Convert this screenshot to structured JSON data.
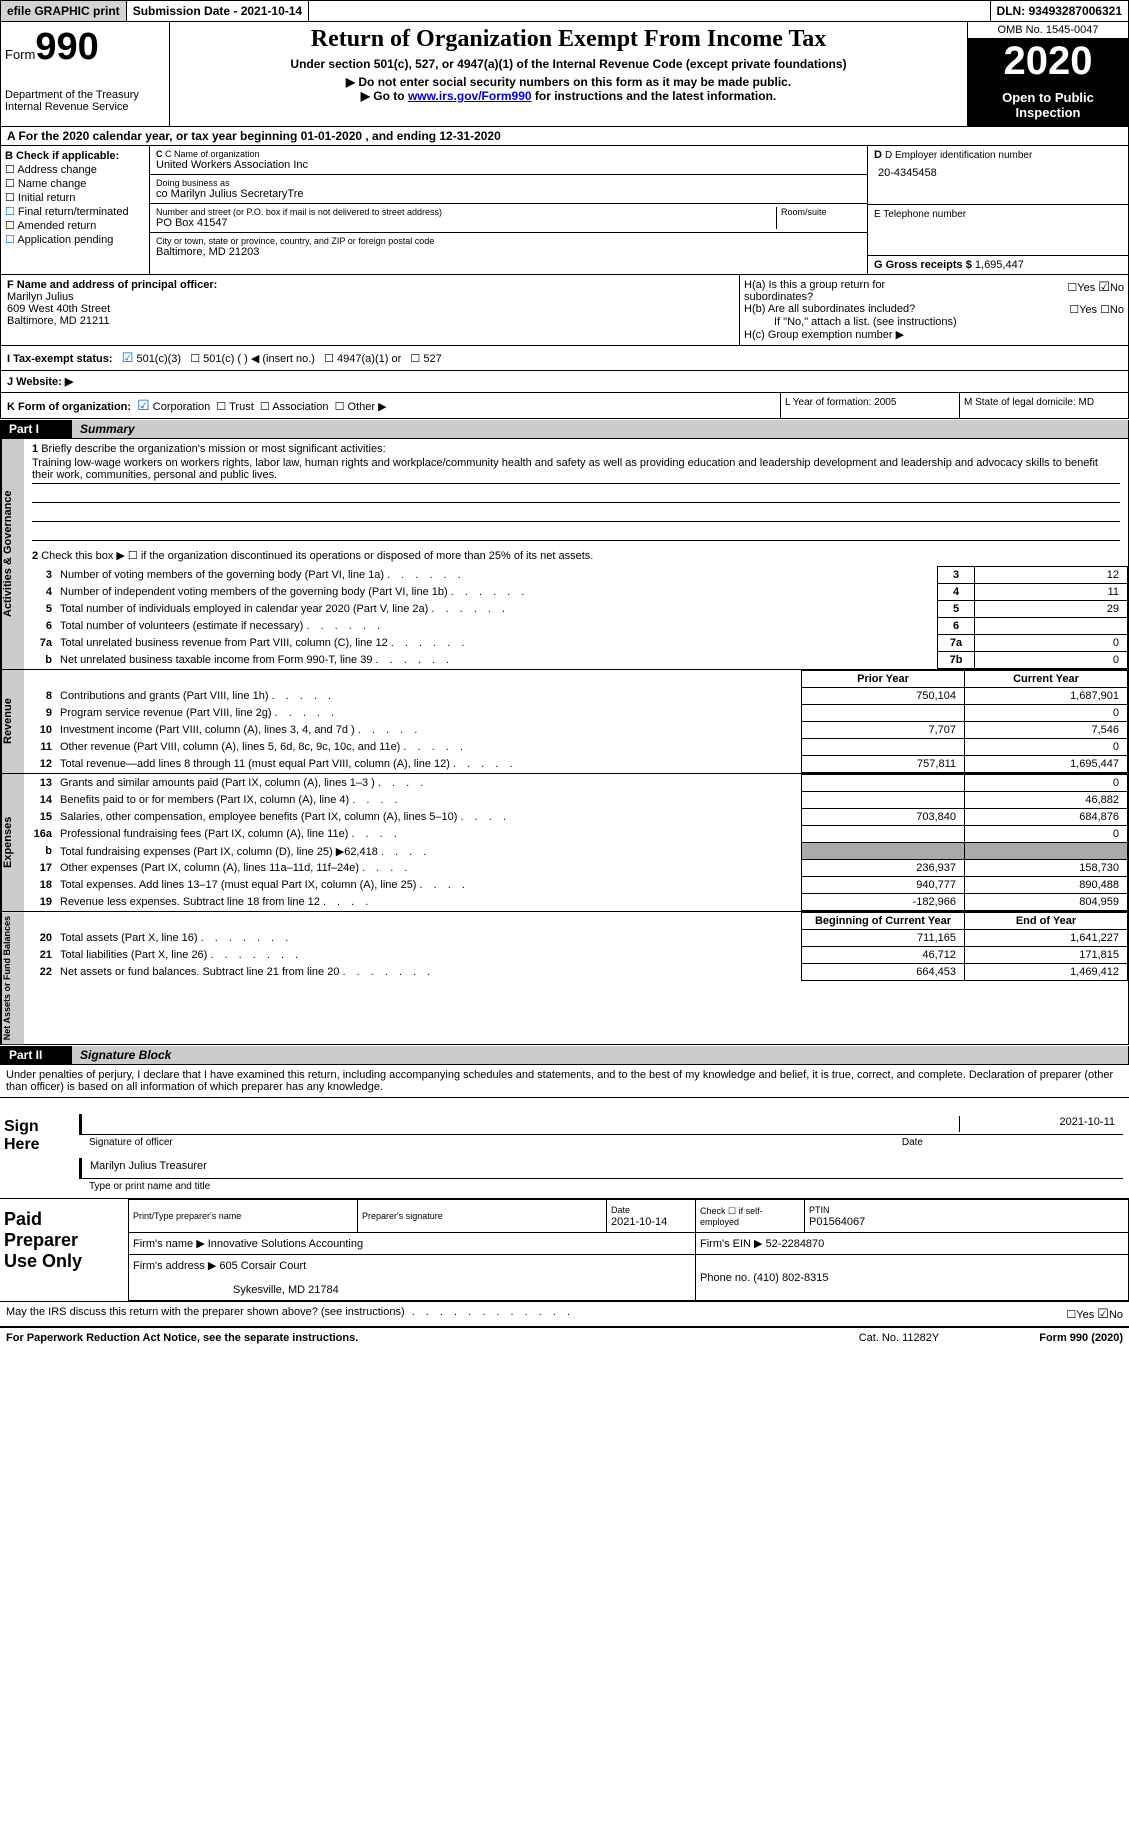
{
  "topbar": {
    "efile": "efile GRAPHIC print",
    "submission": "Submission Date - 2021-10-14",
    "dln_label": "DLN:",
    "dln": "93493287006321"
  },
  "header": {
    "form_prefix": "Form",
    "form_number": "990",
    "dept": "Department of the Treasury\nInternal Revenue Service",
    "title": "Return of Organization Exempt From Income Tax",
    "subtitle": "Under section 501(c), 527, or 4947(a)(1) of the Internal Revenue Code (except private foundations)",
    "note1": "▶ Do not enter social security numbers on this form as it may be made public.",
    "note2_pre": "▶ Go to ",
    "note2_link": "www.irs.gov/Form990",
    "note2_post": " for instructions and the latest information.",
    "omb": "OMB No. 1545-0047",
    "tax_year": "2020",
    "open_public": "Open to Public Inspection"
  },
  "row_a": "A For the 2020 calendar year, or tax year beginning 01-01-2020   , and ending 12-31-2020",
  "col_b": {
    "header": "B Check if applicable:",
    "items": [
      "Address change",
      "Name change",
      "Initial return",
      "Final return/terminated",
      "Amended return",
      "Application pending"
    ]
  },
  "col_c": {
    "name_label": "C Name of organization",
    "name": "United Workers Association Inc",
    "dba_label": "Doing business as",
    "dba": "co Marilyn Julius SecretaryTre",
    "street_label": "Number and street (or P.O. box if mail is not delivered to street address)",
    "room_label": "Room/suite",
    "street": "PO Box 41547",
    "city_label": "City or town, state or province, country, and ZIP or foreign postal code",
    "city": "Baltimore, MD  21203"
  },
  "col_d": {
    "ein_label": "D Employer identification number",
    "ein": "20-4345458",
    "phone_label": "E Telephone number",
    "gross_label": "G Gross receipts $",
    "gross": "1,695,447"
  },
  "officer": {
    "label": "F Name and address of principal officer:",
    "name": "Marilyn Julius",
    "street": "609 West 40th Street",
    "city": "Baltimore, MD  21211"
  },
  "h_section": {
    "ha": "H(a)  Is this a group return for subordinates?",
    "ha_no": "No",
    "hb": "H(b)  Are all subordinates included?",
    "hb_note": "If \"No,\" attach a list. (see instructions)",
    "hc": "H(c)  Group exemption number ▶"
  },
  "row_i": "I  Tax-exempt status:",
  "row_i_opts": [
    "501(c)(3)",
    "501(c) (  ) ◀ (insert no.)",
    "4947(a)(1) or",
    "527"
  ],
  "row_j": "J  Website: ▶",
  "row_k": {
    "label": "K Form of organization:",
    "opts": [
      "Corporation",
      "Trust",
      "Association",
      "Other ▶"
    ]
  },
  "row_lm": {
    "l": "L Year of formation: 2005",
    "m": "M State of legal domicile: MD"
  },
  "part1": {
    "label": "Part I",
    "title": "Summary"
  },
  "mission": {
    "q1": "Briefly describe the organization's mission or most significant activities:",
    "text": "Training low-wage workers on workers rights, labor law, human rights and workplace/community health and safety as well as providing education and leadership development and leadership and advocacy skills to benefit their work, communities, personal and public lives."
  },
  "governance": {
    "q2": "Check this box ▶ ☐ if the organization discontinued its operations or disposed of more than 25% of its net assets.",
    "rows": [
      {
        "n": "3",
        "label": "Number of voting members of the governing body (Part VI, line 1a)",
        "box": "3",
        "val": "12"
      },
      {
        "n": "4",
        "label": "Number of independent voting members of the governing body (Part VI, line 1b)",
        "box": "4",
        "val": "11"
      },
      {
        "n": "5",
        "label": "Total number of individuals employed in calendar year 2020 (Part V, line 2a)",
        "box": "5",
        "val": "29"
      },
      {
        "n": "6",
        "label": "Total number of volunteers (estimate if necessary)",
        "box": "6",
        "val": ""
      },
      {
        "n": "7a",
        "label": "Total unrelated business revenue from Part VIII, column (C), line 12",
        "box": "7a",
        "val": "0"
      },
      {
        "n": "b",
        "label": "Net unrelated business taxable income from Form 990-T, line 39",
        "box": "7b",
        "val": "0"
      }
    ]
  },
  "fin_headers": {
    "prior": "Prior Year",
    "current": "Current Year",
    "boy": "Beginning of Current Year",
    "eoy": "End of Year"
  },
  "revenue": [
    {
      "n": "8",
      "label": "Contributions and grants (Part VIII, line 1h)",
      "prior": "750,104",
      "curr": "1,687,901"
    },
    {
      "n": "9",
      "label": "Program service revenue (Part VIII, line 2g)",
      "prior": "",
      "curr": "0"
    },
    {
      "n": "10",
      "label": "Investment income (Part VIII, column (A), lines 3, 4, and 7d )",
      "prior": "7,707",
      "curr": "7,546"
    },
    {
      "n": "11",
      "label": "Other revenue (Part VIII, column (A), lines 5, 6d, 8c, 9c, 10c, and 11e)",
      "prior": "",
      "curr": "0"
    },
    {
      "n": "12",
      "label": "Total revenue—add lines 8 through 11 (must equal Part VIII, column (A), line 12)",
      "prior": "757,811",
      "curr": "1,695,447"
    }
  ],
  "expenses": [
    {
      "n": "13",
      "label": "Grants and similar amounts paid (Part IX, column (A), lines 1–3 )",
      "prior": "",
      "curr": "0"
    },
    {
      "n": "14",
      "label": "Benefits paid to or for members (Part IX, column (A), line 4)",
      "prior": "",
      "curr": "46,882"
    },
    {
      "n": "15",
      "label": "Salaries, other compensation, employee benefits (Part IX, column (A), lines 5–10)",
      "prior": "703,840",
      "curr": "684,876"
    },
    {
      "n": "16a",
      "label": "Professional fundraising fees (Part IX, column (A), line 11e)",
      "prior": "",
      "curr": "0"
    },
    {
      "n": "b",
      "label": "Total fundraising expenses (Part IX, column (D), line 25) ▶62,418",
      "prior": "shade",
      "curr": "shade"
    },
    {
      "n": "17",
      "label": "Other expenses (Part IX, column (A), lines 11a–11d, 11f–24e)",
      "prior": "236,937",
      "curr": "158,730"
    },
    {
      "n": "18",
      "label": "Total expenses. Add lines 13–17 (must equal Part IX, column (A), line 25)",
      "prior": "940,777",
      "curr": "890,488"
    },
    {
      "n": "19",
      "label": "Revenue less expenses. Subtract line 18 from line 12",
      "prior": "-182,966",
      "curr": "804,959"
    }
  ],
  "netassets": [
    {
      "n": "20",
      "label": "Total assets (Part X, line 16)",
      "prior": "711,165",
      "curr": "1,641,227"
    },
    {
      "n": "21",
      "label": "Total liabilities (Part X, line 26)",
      "prior": "46,712",
      "curr": "171,815"
    },
    {
      "n": "22",
      "label": "Net assets or fund balances. Subtract line 21 from line 20",
      "prior": "664,453",
      "curr": "1,469,412"
    }
  ],
  "part2": {
    "label": "Part II",
    "title": "Signature Block"
  },
  "declaration": "Under penalties of perjury, I declare that I have examined this return, including accompanying schedules and statements, and to the best of my knowledge and belief, it is true, correct, and complete. Declaration of preparer (other than officer) is based on all information of which preparer has any knowledge.",
  "sign": {
    "label": "Sign Here",
    "sig_label": "Signature of officer",
    "date_label": "Date",
    "sig_date": "2021-10-11",
    "name": "Marilyn Julius  Treasurer",
    "type_label": "Type or print name and title"
  },
  "preparer": {
    "label": "Paid Preparer Use Only",
    "h1": "Print/Type preparer's name",
    "h2": "Preparer's signature",
    "h3": "Date",
    "h3v": "2021-10-14",
    "h4": "Check ☐ if self-employed",
    "h5": "PTIN",
    "h5v": "P01564067",
    "firm_label": "Firm's name    ▶",
    "firm": "Innovative Solutions Accounting",
    "ein_label": "Firm's EIN ▶",
    "ein": "52-2284870",
    "addr_label": "Firm's address ▶",
    "addr": "605 Corsair Court",
    "addr2": "Sykesville, MD  21784",
    "phone_label": "Phone no.",
    "phone": "(410) 802-8315"
  },
  "footer": {
    "q": "May the IRS discuss this return with the preparer shown above? (see instructions)",
    "no": "No",
    "pra": "For Paperwork Reduction Act Notice, see the separate instructions.",
    "cat": "Cat. No. 11282Y",
    "form": "Form 990 (2020)"
  },
  "side_labels": {
    "gov": "Activities & Governance",
    "rev": "Revenue",
    "exp": "Expenses",
    "net": "Net Assets or Fund Balances"
  }
}
